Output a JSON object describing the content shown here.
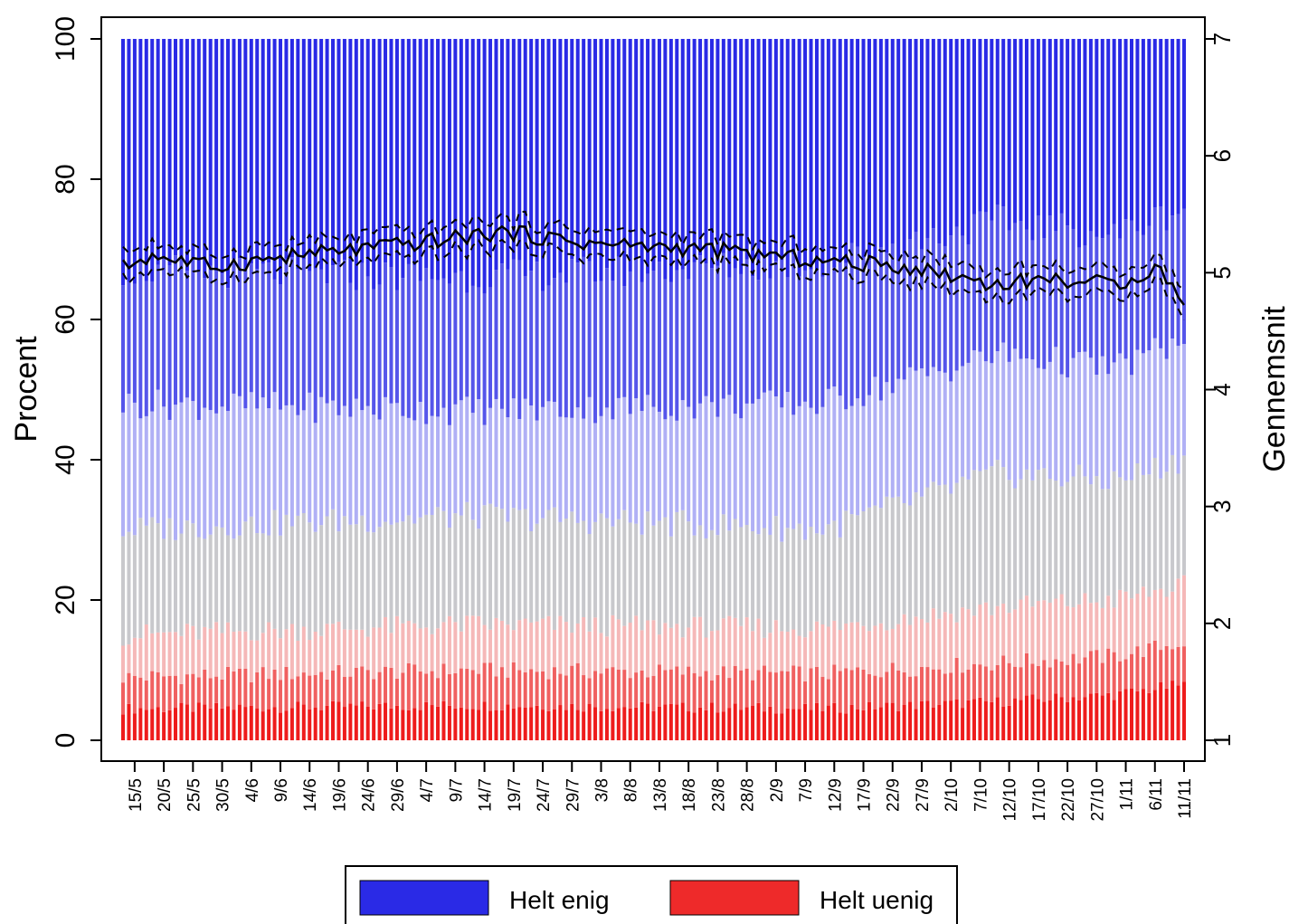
{
  "chart_data": {
    "type": "bar",
    "stacked": true,
    "ylabel": "Procent",
    "y2label": "Gennemsnit",
    "ylim": [
      0,
      100
    ],
    "y2lim": [
      1,
      7
    ],
    "yticks": [
      0,
      20,
      40,
      60,
      80,
      100
    ],
    "y2ticks": [
      1,
      2,
      3,
      4,
      5,
      6,
      7
    ],
    "x_labels": [
      "15/5",
      "20/5",
      "25/5",
      "30/5",
      "4/6",
      "9/6",
      "14/6",
      "19/6",
      "24/6",
      "29/6",
      "4/7",
      "9/7",
      "14/7",
      "19/7",
      "24/7",
      "29/7",
      "3/8",
      "8/8",
      "13/8",
      "18/8",
      "23/8",
      "28/8",
      "2/9",
      "7/9",
      "12/9",
      "17/9",
      "22/9",
      "27/9",
      "2/10",
      "7/10",
      "12/10",
      "17/10",
      "22/10",
      "27/10",
      "1/11",
      "6/11",
      "11/11"
    ],
    "bars_per_label": 5,
    "first_label_bar_index": 2,
    "n_bars": 183,
    "category_colors": [
      "#ee1c1c",
      "#f06060",
      "#f5b8b8",
      "#c8c8cc",
      "#b0b0f5",
      "#5555ea",
      "#2a2ae6"
    ],
    "category_anchors": {
      "day_index": [
        0,
        60,
        120,
        150,
        170,
        182
      ],
      "cum1": [
        4.5,
        5.0,
        4.5,
        5.5,
        6.5,
        8.0
      ],
      "cum2": [
        9.0,
        10.0,
        9.5,
        11.0,
        12.0,
        14.0
      ],
      "cum3": [
        15.0,
        16.5,
        16.0,
        19.0,
        20.0,
        22.0
      ],
      "cum4": [
        30.0,
        32.0,
        30.0,
        38.0,
        37.0,
        40.0
      ],
      "cum5": [
        48.0,
        47.0,
        48.0,
        55.0,
        53.0,
        57.0
      ],
      "cum6": [
        67.0,
        66.0,
        68.0,
        74.0,
        72.0,
        76.0
      ]
    },
    "mean_anchors": {
      "day_index": [
        0,
        5,
        15,
        30,
        50,
        65,
        80,
        100,
        120,
        135,
        150,
        158,
        170,
        178,
        182
      ],
      "mean": [
        5.05,
        5.15,
        5.05,
        5.15,
        5.25,
        5.35,
        5.25,
        5.2,
        5.1,
        5.05,
        4.9,
        4.95,
        4.9,
        5.05,
        4.7
      ]
    },
    "legend": [
      {
        "label": "Helt enig",
        "color": "#2a2ae6"
      },
      {
        "label": "Helt uenig",
        "color": "#ee2a2a"
      }
    ],
    "legend_position": "bottom-center"
  }
}
